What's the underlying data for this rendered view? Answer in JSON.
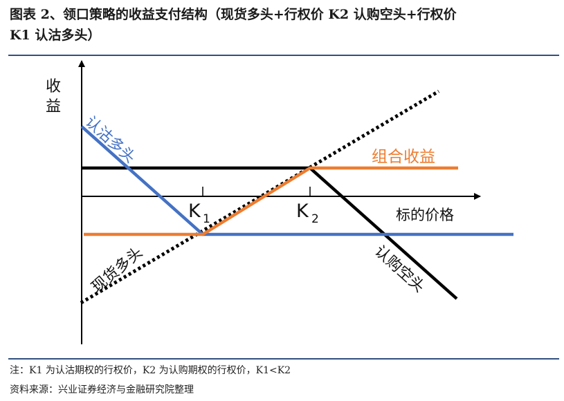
{
  "header": {
    "title_line1": "图表 2、领口策略的收益支付结构（现货多头+行权价 K2 认购空头+行权价",
    "title_line2": "K1 认沽多头）"
  },
  "diagram": {
    "y_axis_label_1": "收",
    "y_axis_label_2": "益",
    "x_axis_label": "标的价格",
    "k1_label": "K",
    "k1_sub": "1",
    "k2_label": "K",
    "k2_sub": "2",
    "put_long_label": "认沽多头",
    "spot_long_label": "现货多头",
    "call_short_label": "认购空头",
    "combined_label": "组合收益",
    "colors": {
      "put_long": "#4472c4",
      "combined": "#ed7d31",
      "call_short": "#000000",
      "spot_long": "#000000"
    }
  },
  "footer": {
    "note": "注：K1 为认沽期权的行权价，K2 为认购期权的行权价，K1<K2",
    "source": "资料来源：兴业证券经济与金融研究院整理"
  }
}
